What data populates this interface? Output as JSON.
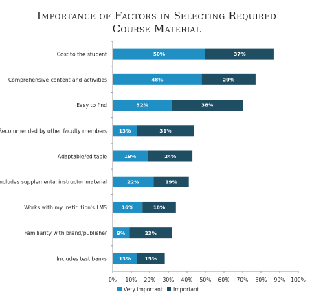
{
  "colors": {
    "very_important": "#1f8fc4",
    "important": "#1f4e63",
    "axis": "#9a9a9a",
    "text": "#222222"
  },
  "chart_data": {
    "type": "bar",
    "orientation": "horizontal",
    "stacked": true,
    "title_lines": [
      "Importance of Factors in Selecting Required",
      "Course Material"
    ],
    "xlabel": "",
    "ylabel": "",
    "xlim": [
      0,
      100
    ],
    "x_ticks": [
      "0%",
      "10%",
      "20%",
      "30%",
      "40%",
      "50%",
      "60%",
      "70%",
      "80%",
      "90%",
      "100%"
    ],
    "grid": false,
    "legend_position": "bottom",
    "categories": [
      "Cost to the student",
      "Comprehensive content and activities",
      "Easy to find",
      "Recommended by other faculty members",
      "Adaptable/editable",
      "Includes supplemental instructor material",
      "Works with my institution's LMS",
      "Familiarity with brand/publisher",
      "Includes test banks"
    ],
    "series": [
      {
        "name": "Very important",
        "values": [
          50,
          48,
          32,
          13,
          19,
          22,
          16,
          9,
          13
        ],
        "labels": [
          "50%",
          "48%",
          "32%",
          "13%",
          "19%",
          "22%",
          "16%",
          "9%",
          "13%"
        ]
      },
      {
        "name": "Important",
        "values": [
          37,
          29,
          38,
          31,
          24,
          19,
          18,
          23,
          15
        ],
        "labels": [
          "37%",
          "29%",
          "38%",
          "31%",
          "24%",
          "19%",
          "18%",
          "23%",
          "15%"
        ]
      }
    ]
  }
}
